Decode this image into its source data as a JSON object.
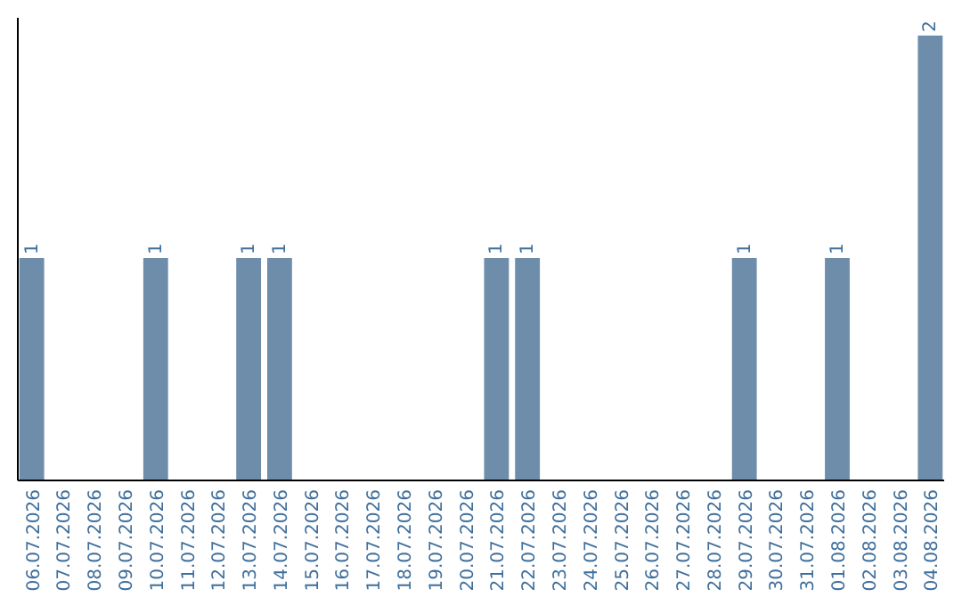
{
  "chart_data": {
    "type": "bar",
    "categories": [
      "06.07.2026",
      "07.07.2026",
      "08.07.2026",
      "09.07.2026",
      "10.07.2026",
      "11.07.2026",
      "12.07.2026",
      "13.07.2026",
      "14.07.2026",
      "15.07.2026",
      "16.07.2026",
      "17.07.2026",
      "18.07.2026",
      "19.07.2026",
      "20.07.2026",
      "21.07.2026",
      "22.07.2026",
      "23.07.2026",
      "24.07.2026",
      "25.07.2026",
      "26.07.2026",
      "27.07.2026",
      "28.07.2026",
      "29.07.2026",
      "30.07.2026",
      "31.07.2026",
      "01.08.2026",
      "02.08.2026",
      "03.08.2026",
      "04.08.2026"
    ],
    "values": [
      1,
      0,
      0,
      0,
      1,
      0,
      0,
      1,
      1,
      0,
      0,
      0,
      0,
      0,
      0,
      1,
      1,
      0,
      0,
      0,
      0,
      0,
      0,
      1,
      0,
      0,
      1,
      0,
      0,
      2
    ],
    "value_labels": [
      "1",
      null,
      null,
      null,
      "1",
      null,
      null,
      "1",
      "1",
      null,
      null,
      null,
      null,
      null,
      null,
      "1",
      "1",
      null,
      null,
      null,
      null,
      null,
      null,
      "1",
      null,
      null,
      "1",
      null,
      null,
      "2"
    ],
    "color": "#6d8dab",
    "ylim": [
      0,
      2.08
    ],
    "tick_labels": "x"
  }
}
